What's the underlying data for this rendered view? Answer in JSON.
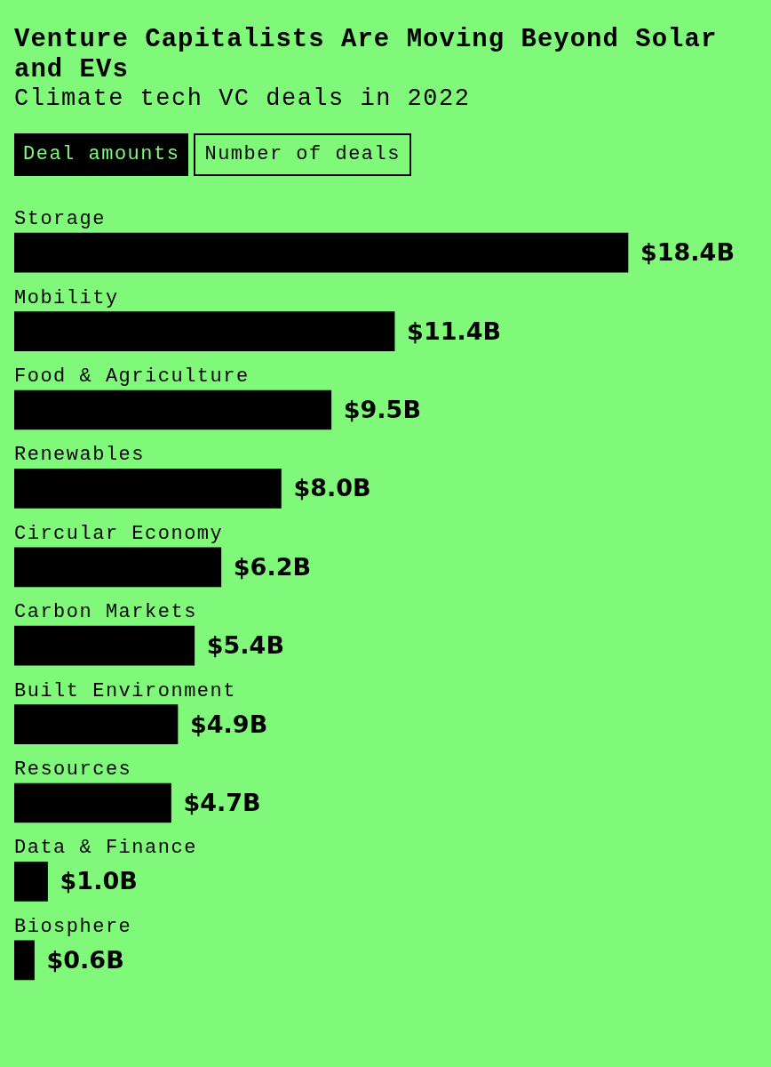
{
  "chart_data": {
    "type": "bar",
    "orientation": "horizontal",
    "title": "Venture Capitalists Are Moving Beyond Solar and EVs",
    "subtitle": "Climate tech VC deals in 2022",
    "annotations": [
      "Deal amounts",
      "Number of deals"
    ],
    "categories": [
      "Storage",
      "Mobility",
      "Food & Agriculture",
      "Renewables",
      "Circular Economy",
      "Carbon Markets",
      "Built Environment",
      "Resources",
      "Data & Finance",
      "Biosphere"
    ],
    "values": [
      18.4,
      11.4,
      9.5,
      8.0,
      6.2,
      5.4,
      4.9,
      4.7,
      1.0,
      0.6
    ],
    "value_labels": [
      "$18.4B",
      "$11.4B",
      "$9.5B",
      "$8.0B",
      "$6.2B",
      "$5.4B",
      "$4.9B",
      "$4.7B",
      "$1.0B",
      "$0.6B"
    ],
    "color": "#000000",
    "tick_labels": "y"
  }
}
